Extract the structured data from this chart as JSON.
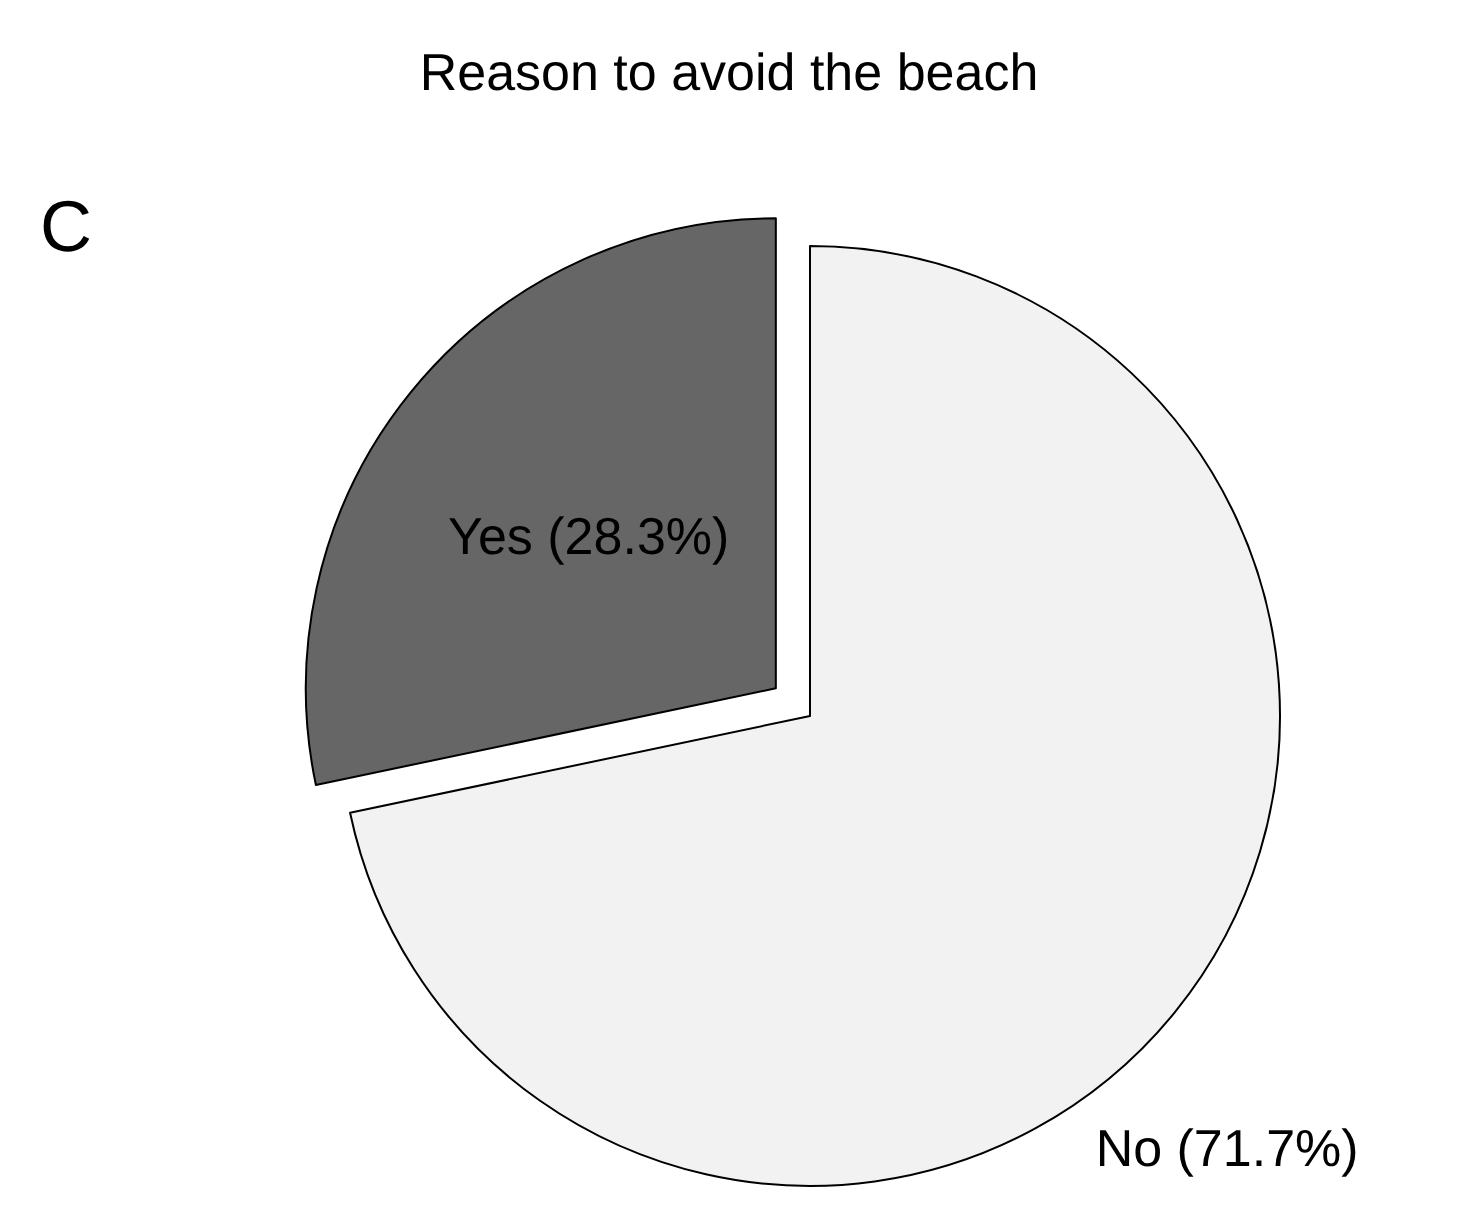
{
  "chart_data": {
    "type": "pie",
    "title": "Reason to avoid the beach",
    "categories": [
      "Yes (28.3%)",
      "No (71.7%)"
    ],
    "values": [
      28.3,
      71.7
    ],
    "colors": [
      "#666666",
      "#f2f2f2"
    ],
    "annotations": [
      "C"
    ],
    "legend": false
  }
}
